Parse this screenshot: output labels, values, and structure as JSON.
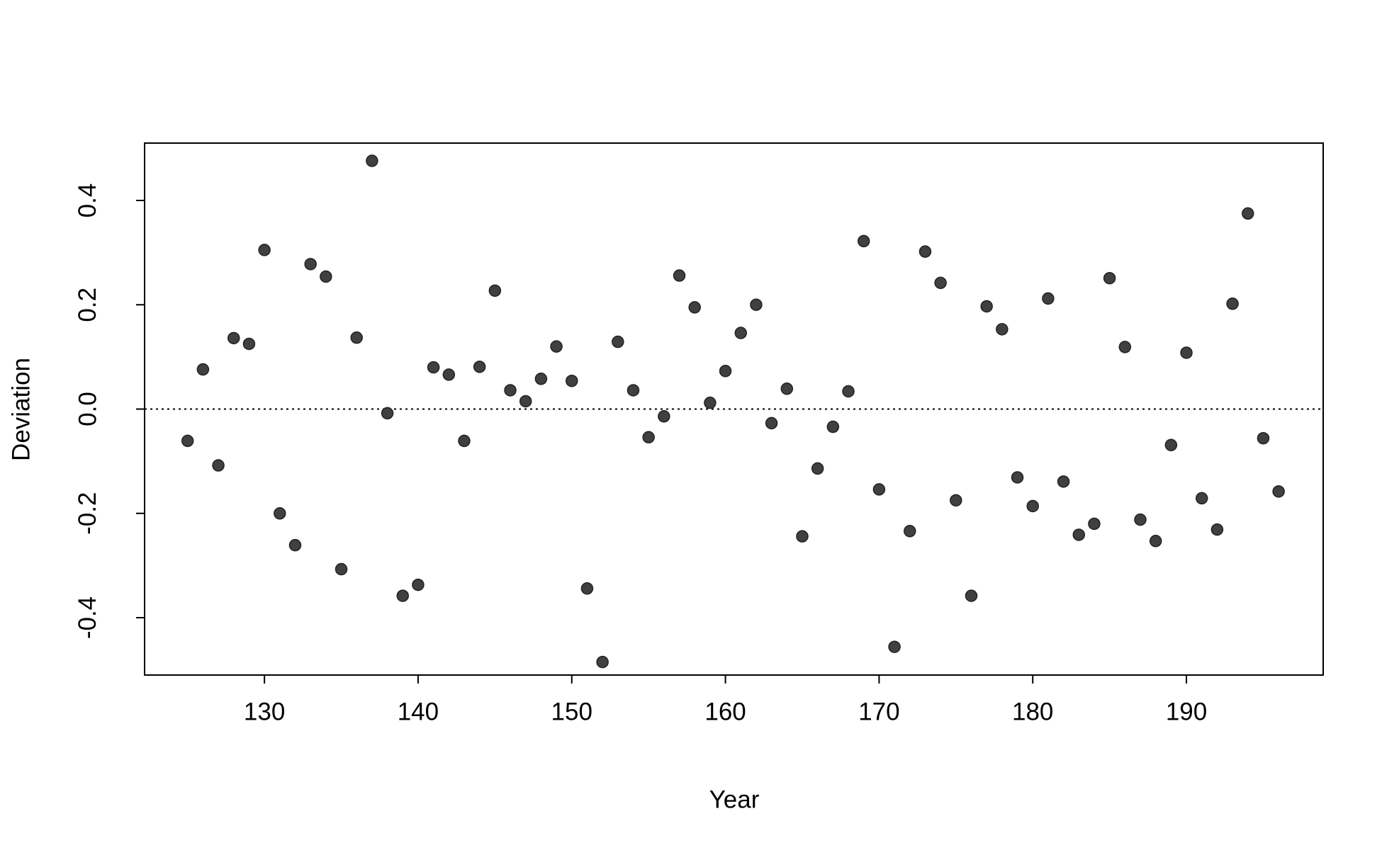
{
  "chart_data": {
    "type": "scatter",
    "x_label": "Year",
    "y_label": "Deviation",
    "x": [
      125,
      126,
      127,
      128,
      129,
      130,
      131,
      132,
      133,
      134,
      135,
      136,
      137,
      138,
      139,
      140,
      141,
      142,
      143,
      144,
      145,
      146,
      147,
      148,
      149,
      150,
      151,
      152,
      153,
      154,
      155,
      156,
      157,
      158,
      159,
      160,
      161,
      162,
      163,
      164,
      165,
      166,
      167,
      168,
      169,
      170,
      171,
      172,
      173,
      174,
      175,
      176,
      177,
      178,
      179,
      180,
      181,
      182,
      183,
      184,
      185,
      186,
      187,
      188,
      189,
      190,
      191,
      192,
      193,
      194,
      195,
      196
    ],
    "values": [
      -0.061,
      0.076,
      -0.108,
      0.136,
      0.125,
      0.305,
      -0.2,
      -0.261,
      0.278,
      0.254,
      -0.307,
      0.137,
      0.476,
      -0.008,
      -0.358,
      -0.337,
      0.08,
      0.066,
      -0.061,
      0.081,
      0.227,
      0.036,
      0.015,
      0.058,
      0.12,
      0.054,
      -0.344,
      -0.485,
      0.129,
      0.036,
      -0.054,
      -0.014,
      0.256,
      0.195,
      0.012,
      0.073,
      0.146,
      0.2,
      -0.027,
      0.039,
      -0.244,
      -0.114,
      -0.034,
      0.034,
      0.322,
      -0.154,
      -0.456,
      -0.234,
      0.302,
      0.242,
      -0.175,
      -0.358,
      0.197,
      0.153,
      -0.131,
      -0.186,
      0.212,
      -0.139,
      -0.241,
      -0.22,
      0.251,
      0.119,
      -0.212,
      -0.253,
      -0.069,
      0.108,
      -0.171,
      -0.231,
      0.202,
      0.375,
      -0.056,
      -0.158
    ],
    "color": "#404040",
    "xlim": [
      122.2,
      198.9
    ],
    "xticks": [
      130,
      140,
      150,
      160,
      170,
      180,
      190
    ],
    "ylim": [
      -0.51,
      0.51
    ],
    "yticks": [
      -0.4,
      -0.2,
      {
        "value": 0,
        "label": "0.0"
      },
      0.2,
      0.4
    ],
    "reference_line": 0,
    "grid": false
  }
}
